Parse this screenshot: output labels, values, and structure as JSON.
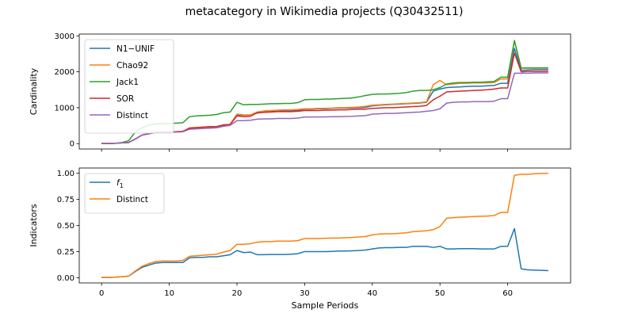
{
  "figure": {
    "title": "metacategory in Wikimedia projects (Q30432511)"
  },
  "chart_data": [
    {
      "type": "line",
      "title": "metacategory in Wikimedia projects (Q30432511)",
      "xlabel": "",
      "ylabel": "Cardinality",
      "xlim": [
        -3.3,
        69.3
      ],
      "ylim": [
        -150,
        3050
      ],
      "xticks": [
        0,
        10,
        20,
        30,
        40,
        50,
        60
      ],
      "yticks": [
        0,
        1000,
        2000,
        3000
      ],
      "legend_position": "top-left",
      "series": [
        {
          "name": "N1−UNIF",
          "color": "#1f77b4",
          "x": [
            0,
            1,
            2,
            3,
            4,
            5,
            6,
            7,
            8,
            9,
            10,
            11,
            12,
            13,
            14,
            15,
            16,
            17,
            18,
            19,
            20,
            21,
            22,
            23,
            24,
            25,
            26,
            27,
            28,
            29,
            30,
            31,
            32,
            33,
            34,
            35,
            36,
            37,
            38,
            39,
            40,
            41,
            42,
            43,
            44,
            45,
            46,
            47,
            48,
            49,
            50,
            51,
            52,
            53,
            54,
            55,
            56,
            57,
            58,
            59,
            60,
            61,
            62,
            63,
            64,
            65,
            66
          ],
          "y": [
            5,
            5,
            8,
            20,
            30,
            130,
            240,
            280,
            320,
            330,
            330,
            330,
            340,
            430,
            440,
            450,
            460,
            470,
            510,
            530,
            800,
            790,
            800,
            850,
            880,
            890,
            900,
            910,
            910,
            920,
            960,
            960,
            970,
            970,
            980,
            990,
            990,
            995,
            1000,
            1010,
            1050,
            1070,
            1080,
            1090,
            1100,
            1110,
            1120,
            1130,
            1150,
            1460,
            1520,
            1560,
            1570,
            1580,
            1590,
            1600,
            1600,
            1610,
            1620,
            1680,
            1680,
            2650,
            2040,
            2050,
            2060,
            2060,
            2060
          ]
        },
        {
          "name": "Chao92",
          "color": "#ff7f0e",
          "x": [
            0,
            1,
            2,
            3,
            4,
            5,
            6,
            7,
            8,
            9,
            10,
            11,
            12,
            13,
            14,
            15,
            16,
            17,
            18,
            19,
            20,
            21,
            22,
            23,
            24,
            25,
            26,
            27,
            28,
            29,
            30,
            31,
            32,
            33,
            34,
            35,
            36,
            37,
            38,
            39,
            40,
            41,
            42,
            43,
            44,
            45,
            46,
            47,
            48,
            49,
            50,
            51,
            52,
            53,
            54,
            55,
            56,
            57,
            58,
            59,
            60,
            61,
            62,
            63,
            64,
            65,
            66
          ],
          "y": [
            5,
            5,
            8,
            20,
            30,
            130,
            240,
            290,
            320,
            330,
            330,
            330,
            340,
            440,
            450,
            460,
            470,
            480,
            520,
            540,
            820,
            800,
            800,
            880,
            910,
            920,
            930,
            940,
            940,
            950,
            970,
            970,
            980,
            980,
            990,
            1000,
            1000,
            1010,
            1020,
            1040,
            1070,
            1080,
            1090,
            1100,
            1110,
            1120,
            1130,
            1140,
            1160,
            1640,
            1760,
            1640,
            1660,
            1680,
            1680,
            1690,
            1690,
            1690,
            1700,
            1800,
            1800,
            2860,
            2100,
            2100,
            2100,
            2100,
            2100
          ]
        },
        {
          "name": "Jack1",
          "color": "#2ca02c",
          "x": [
            0,
            1,
            2,
            3,
            4,
            5,
            6,
            7,
            8,
            9,
            10,
            11,
            12,
            13,
            14,
            15,
            16,
            17,
            18,
            19,
            20,
            21,
            22,
            23,
            24,
            25,
            26,
            27,
            28,
            29,
            30,
            31,
            32,
            33,
            34,
            35,
            36,
            37,
            38,
            39,
            40,
            41,
            42,
            43,
            44,
            45,
            46,
            47,
            48,
            49,
            50,
            51,
            52,
            53,
            54,
            55,
            56,
            57,
            58,
            59,
            60,
            61,
            62,
            63,
            64,
            65,
            66
          ],
          "y": [
            5,
            5,
            8,
            30,
            80,
            330,
            440,
            520,
            550,
            560,
            560,
            570,
            580,
            750,
            770,
            780,
            790,
            810,
            860,
            880,
            1150,
            1080,
            1090,
            1090,
            1100,
            1110,
            1110,
            1120,
            1120,
            1140,
            1220,
            1230,
            1230,
            1240,
            1240,
            1250,
            1260,
            1270,
            1300,
            1340,
            1370,
            1380,
            1380,
            1390,
            1400,
            1420,
            1460,
            1480,
            1480,
            1500,
            1560,
            1660,
            1690,
            1700,
            1700,
            1710,
            1710,
            1720,
            1730,
            1850,
            1850,
            2870,
            2100,
            2110,
            2110,
            2110,
            2110
          ]
        },
        {
          "name": "SOR",
          "color": "#d62728",
          "x": [
            0,
            1,
            2,
            3,
            4,
            5,
            6,
            7,
            8,
            9,
            10,
            11,
            12,
            13,
            14,
            15,
            16,
            17,
            18,
            19,
            20,
            21,
            22,
            23,
            24,
            25,
            26,
            27,
            28,
            29,
            30,
            31,
            32,
            33,
            34,
            35,
            36,
            37,
            38,
            39,
            40,
            41,
            42,
            43,
            44,
            45,
            46,
            47,
            48,
            49,
            50,
            51,
            52,
            53,
            54,
            55,
            56,
            57,
            58,
            59,
            60,
            61,
            62,
            63,
            64,
            65,
            66
          ],
          "y": [
            5,
            5,
            8,
            20,
            30,
            130,
            240,
            280,
            320,
            330,
            330,
            330,
            340,
            430,
            440,
            460,
            470,
            470,
            520,
            530,
            770,
            750,
            760,
            860,
            870,
            880,
            890,
            890,
            890,
            900,
            920,
            920,
            920,
            930,
            930,
            940,
            940,
            950,
            960,
            960,
            980,
            990,
            1000,
            1000,
            1010,
            1020,
            1030,
            1040,
            1060,
            1220,
            1320,
            1440,
            1450,
            1460,
            1470,
            1480,
            1490,
            1500,
            1520,
            1550,
            1550,
            2520,
            2000,
            2010,
            2010,
            2010,
            2010
          ]
        },
        {
          "name": "Distinct",
          "color": "#9467bd",
          "x": [
            0,
            1,
            2,
            3,
            4,
            5,
            6,
            7,
            8,
            9,
            10,
            11,
            12,
            13,
            14,
            15,
            16,
            17,
            18,
            19,
            20,
            21,
            22,
            23,
            24,
            25,
            26,
            27,
            28,
            29,
            30,
            31,
            32,
            33,
            34,
            35,
            36,
            37,
            38,
            39,
            40,
            41,
            42,
            43,
            44,
            45,
            46,
            47,
            48,
            49,
            50,
            51,
            52,
            53,
            54,
            55,
            56,
            57,
            58,
            59,
            60,
            61,
            62,
            63,
            64,
            65,
            66
          ],
          "y": [
            5,
            5,
            8,
            20,
            30,
            130,
            240,
            270,
            310,
            320,
            320,
            320,
            330,
            400,
            410,
            420,
            430,
            440,
            480,
            510,
            640,
            640,
            650,
            680,
            690,
            690,
            700,
            700,
            700,
            710,
            740,
            740,
            740,
            745,
            750,
            750,
            755,
            760,
            770,
            780,
            820,
            830,
            840,
            840,
            850,
            860,
            870,
            880,
            900,
            920,
            970,
            1130,
            1150,
            1160,
            1160,
            1170,
            1170,
            1170,
            1180,
            1250,
            1250,
            1960,
            1960,
            1960,
            1970,
            1970,
            1970
          ]
        }
      ]
    },
    {
      "type": "line",
      "title": "",
      "xlabel": "Sample Periods",
      "ylabel": "Indicators",
      "xlim": [
        -3.3,
        69.3
      ],
      "ylim": [
        -0.05,
        1.05
      ],
      "xticks": [
        0,
        10,
        20,
        30,
        40,
        50,
        60
      ],
      "yticks": [
        0.0,
        0.25,
        0.5,
        0.75,
        1.0
      ],
      "ytick_labels": [
        "0.00",
        "0.25",
        "0.50",
        "0.75",
        "1.00"
      ],
      "legend_position": "top-left",
      "series": [
        {
          "name": "f1",
          "color": "#1f77b4",
          "x": [
            0,
            1,
            2,
            3,
            4,
            5,
            6,
            7,
            8,
            9,
            10,
            11,
            12,
            13,
            14,
            15,
            16,
            17,
            18,
            19,
            20,
            21,
            22,
            23,
            24,
            25,
            26,
            27,
            28,
            29,
            30,
            31,
            32,
            33,
            34,
            35,
            36,
            37,
            38,
            39,
            40,
            41,
            42,
            43,
            44,
            45,
            46,
            47,
            48,
            49,
            50,
            51,
            52,
            53,
            54,
            55,
            56,
            57,
            58,
            59,
            60,
            61,
            62,
            63,
            64,
            65,
            66
          ],
          "y": [
            0.003,
            0.003,
            0.005,
            0.01,
            0.015,
            0.06,
            0.1,
            0.12,
            0.14,
            0.145,
            0.145,
            0.145,
            0.145,
            0.19,
            0.195,
            0.195,
            0.2,
            0.2,
            0.21,
            0.22,
            0.26,
            0.24,
            0.245,
            0.22,
            0.22,
            0.222,
            0.222,
            0.222,
            0.225,
            0.23,
            0.25,
            0.25,
            0.25,
            0.25,
            0.252,
            0.255,
            0.255,
            0.257,
            0.26,
            0.265,
            0.275,
            0.285,
            0.288,
            0.288,
            0.29,
            0.29,
            0.3,
            0.3,
            0.3,
            0.29,
            0.3,
            0.275,
            0.275,
            0.278,
            0.278,
            0.278,
            0.275,
            0.275,
            0.275,
            0.3,
            0.3,
            0.47,
            0.085,
            0.075,
            0.072,
            0.07,
            0.068
          ]
        },
        {
          "name": "Distinct",
          "color": "#ff7f0e",
          "x": [
            0,
            1,
            2,
            3,
            4,
            5,
            6,
            7,
            8,
            9,
            10,
            11,
            12,
            13,
            14,
            15,
            16,
            17,
            18,
            19,
            20,
            21,
            22,
            23,
            24,
            25,
            26,
            27,
            28,
            29,
            30,
            31,
            32,
            33,
            34,
            35,
            36,
            37,
            38,
            39,
            40,
            41,
            42,
            43,
            44,
            45,
            46,
            47,
            48,
            49,
            50,
            51,
            52,
            53,
            54,
            55,
            56,
            57,
            58,
            59,
            60,
            61,
            62,
            63,
            64,
            65,
            66
          ],
          "y": [
            0.003,
            0.003,
            0.005,
            0.01,
            0.015,
            0.065,
            0.11,
            0.135,
            0.155,
            0.16,
            0.16,
            0.16,
            0.165,
            0.205,
            0.21,
            0.215,
            0.22,
            0.225,
            0.245,
            0.26,
            0.32,
            0.32,
            0.325,
            0.34,
            0.345,
            0.345,
            0.35,
            0.35,
            0.35,
            0.355,
            0.375,
            0.375,
            0.375,
            0.378,
            0.38,
            0.38,
            0.382,
            0.385,
            0.39,
            0.395,
            0.41,
            0.418,
            0.42,
            0.42,
            0.425,
            0.43,
            0.44,
            0.445,
            0.45,
            0.46,
            0.49,
            0.57,
            0.575,
            0.58,
            0.582,
            0.585,
            0.588,
            0.59,
            0.595,
            0.625,
            0.625,
            0.98,
            0.99,
            0.99,
            0.995,
            0.998,
            1.0
          ]
        }
      ]
    }
  ]
}
